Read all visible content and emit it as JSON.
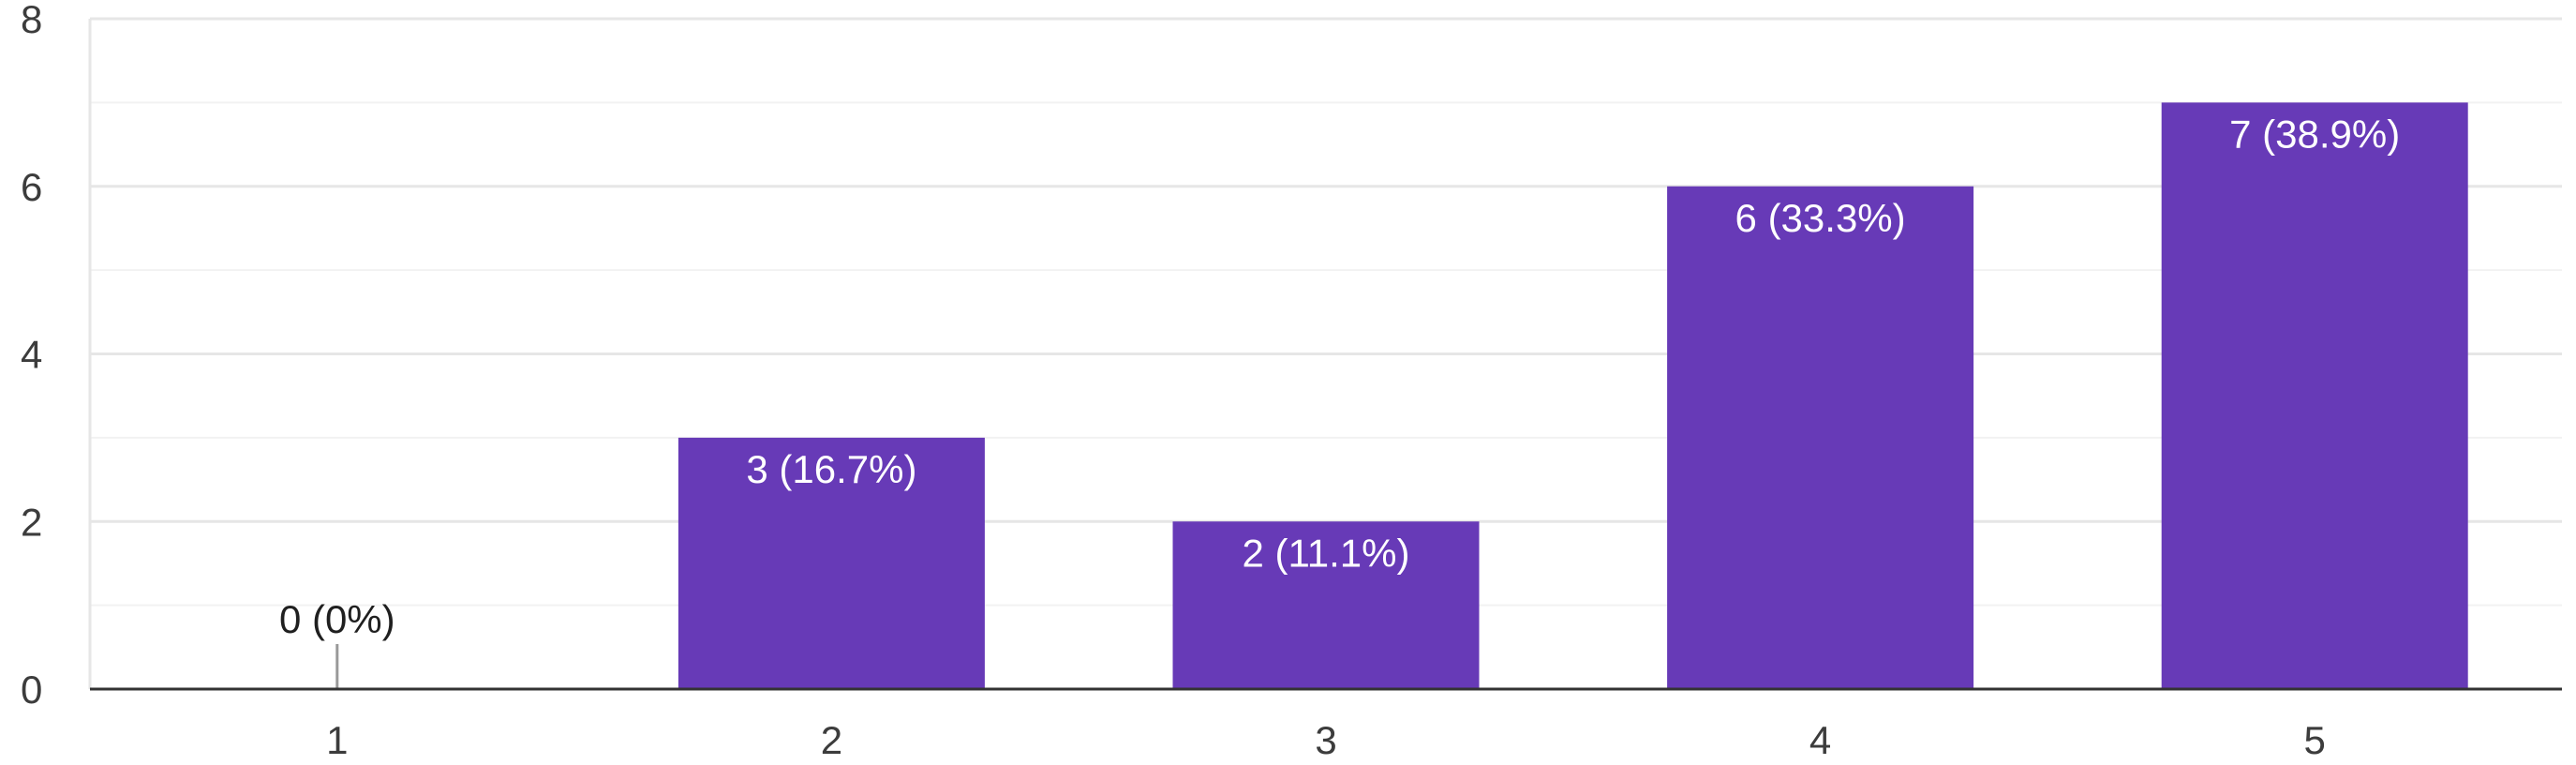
{
  "chart_data": {
    "type": "bar",
    "categories": [
      "1",
      "2",
      "3",
      "4",
      "5"
    ],
    "values": [
      0,
      3,
      2,
      6,
      7
    ],
    "data_labels": [
      "0 (0%)",
      "3 (16.7%)",
      "2 (11.1%)",
      "6 (33.3%)",
      "7 (38.9%)"
    ],
    "y_ticks": [
      "0",
      "2",
      "4",
      "6",
      "8"
    ],
    "ylim": [
      0,
      8
    ],
    "major_tick_step": 2,
    "minor_tick_step": 1,
    "grid": true,
    "legend": "none",
    "title": "",
    "xlabel": "",
    "ylabel": "",
    "colors": {
      "bar": "#673AB7",
      "bar_label": "#ffffff",
      "zero_label": "#1f1f1f",
      "grid": "#e6e6e6",
      "minor_grid": "#f2f2f2",
      "axis": "#333333",
      "zero_marker": "#999999"
    }
  }
}
